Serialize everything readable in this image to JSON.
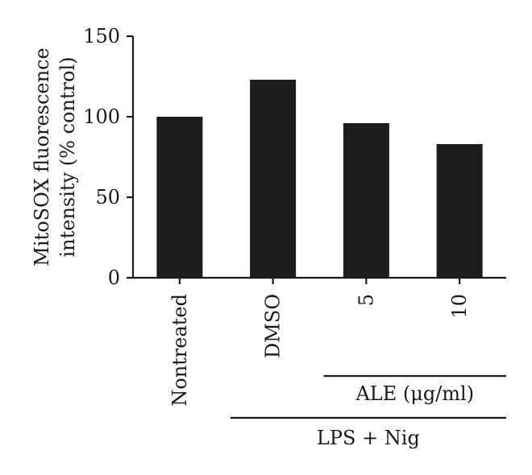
{
  "chart_data": {
    "type": "bar",
    "categories": [
      "Nontreated",
      "DMSO",
      "5",
      "10"
    ],
    "values": [
      100,
      123,
      96,
      83
    ],
    "title": "",
    "xlabel": "",
    "ylabel_lines": [
      "MitoSOX fluorescence",
      "intensity (% control)"
    ],
    "ylim": [
      0,
      150
    ],
    "yticks": [
      0,
      50,
      100,
      150
    ],
    "bar_color": "#1c1c1c",
    "grid": false,
    "groups": [
      {
        "label": "ALE (μg/ml)",
        "categories": [
          "5",
          "10"
        ]
      },
      {
        "label": "LPS + Nig",
        "categories": [
          "DMSO",
          "5",
          "10"
        ]
      }
    ]
  }
}
